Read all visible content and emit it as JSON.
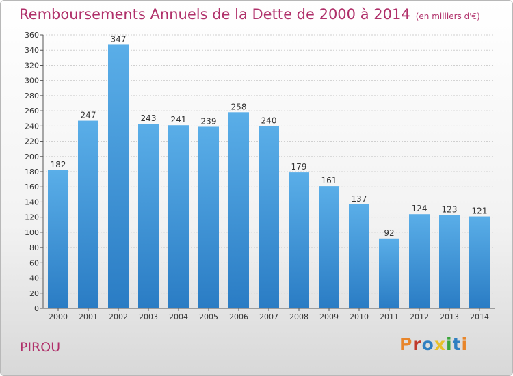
{
  "header": {
    "title": "Remboursements Annuels de la Dette de 2000 à 2014",
    "unit": "(en milliers d'€)"
  },
  "footer": {
    "commune": "PIROU",
    "logo_text": "Proxiti",
    "logo_colors": [
      "#e8852a",
      "#c0392b",
      "#2f7fc1",
      "#e8c02a",
      "#3aa53a",
      "#2f7fc1",
      "#e8852a"
    ]
  },
  "chart_data": {
    "type": "bar",
    "title": "Remboursements Annuels de la Dette de 2000 à 2014",
    "xlabel": "",
    "ylabel": "",
    "categories": [
      "2000",
      "2001",
      "2002",
      "2003",
      "2004",
      "2005",
      "2006",
      "2007",
      "2008",
      "2009",
      "2010",
      "2011",
      "2012",
      "2013",
      "2014"
    ],
    "values": [
      182,
      247,
      347,
      243,
      241,
      239,
      258,
      240,
      179,
      161,
      137,
      92,
      124,
      123,
      121
    ],
    "ylim": [
      0,
      360
    ],
    "yticks": [
      0,
      20,
      40,
      60,
      80,
      100,
      120,
      140,
      160,
      180,
      200,
      220,
      240,
      260,
      280,
      300,
      320,
      340,
      360
    ],
    "grid": true,
    "bar_color_top": "#5aaee8",
    "bar_color_bottom": "#2a7cc4"
  }
}
